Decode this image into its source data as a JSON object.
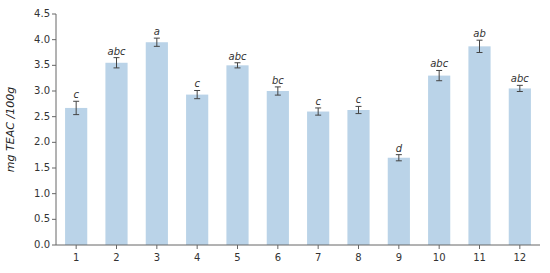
{
  "chart_data": {
    "type": "bar",
    "categories": [
      1,
      2,
      3,
      4,
      5,
      6,
      7,
      8,
      9,
      10,
      11,
      12
    ],
    "values": [
      2.67,
      3.55,
      3.95,
      2.93,
      3.5,
      3.0,
      2.6,
      2.63,
      1.7,
      3.3,
      3.87,
      3.05
    ],
    "errors": [
      0.13,
      0.1,
      0.08,
      0.08,
      0.05,
      0.08,
      0.07,
      0.07,
      0.06,
      0.1,
      0.12,
      0.06
    ],
    "labels": [
      "c",
      "abc",
      "a",
      "c",
      "abc",
      "bc",
      "c",
      "c",
      "d",
      "abc",
      "ab",
      "abc"
    ],
    "color": "#bad3e8",
    "ylabel": "mg TEAC /100g",
    "ylim": [
      0,
      4.5
    ],
    "yticks": [
      {
        "value": 0.0,
        "label": "0.0"
      },
      0.5,
      {
        "value": 1.0,
        "label": "1.0"
      },
      1.5,
      {
        "value": 2.0,
        "label": "2.0"
      },
      2.5,
      {
        "value": 3.0,
        "label": "3.0"
      },
      3.5,
      {
        "value": 4.0,
        "label": "4.0"
      },
      4.5
    ],
    "grid": false
  }
}
